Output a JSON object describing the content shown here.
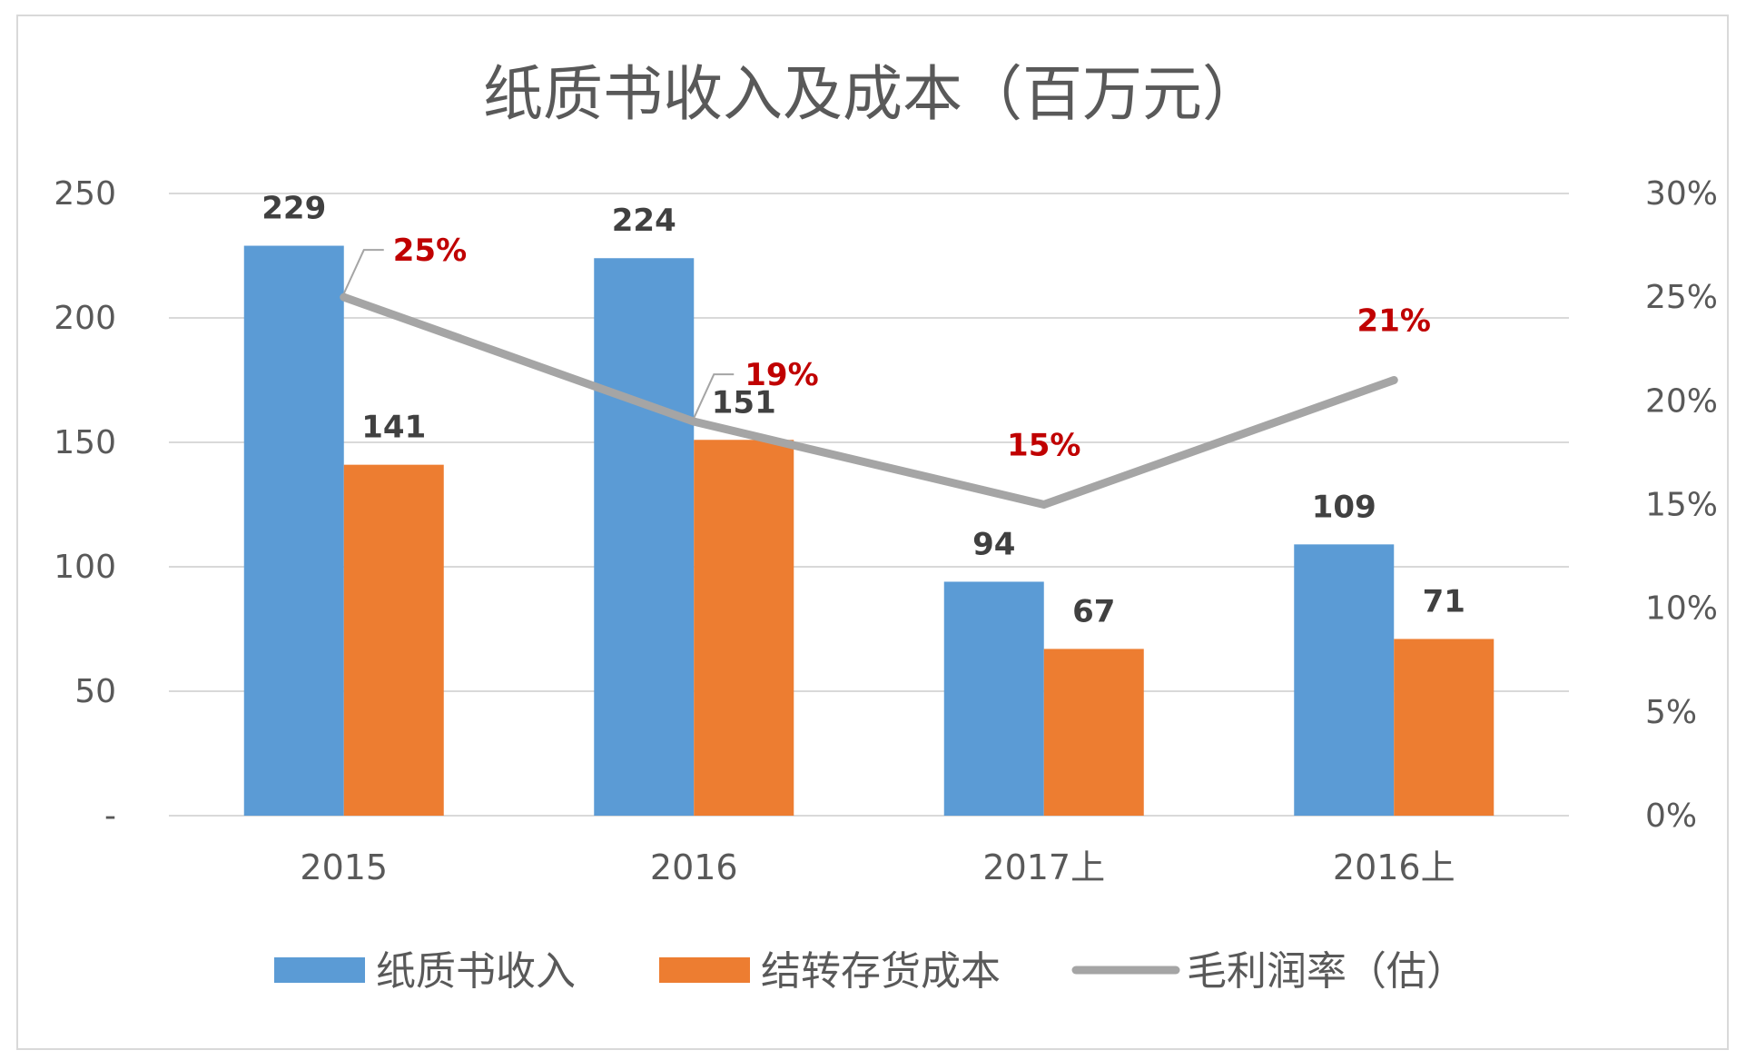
{
  "chart_data": {
    "type": "bar",
    "title": "纸质书收入及成本（百万元）",
    "categories": [
      "2015",
      "2016",
      "2017上",
      "2016上"
    ],
    "series": [
      {
        "name": "纸质书收入",
        "type": "bar",
        "axis": "left",
        "color": "#5b9bd5",
        "values": [
          229,
          224,
          94,
          109
        ],
        "labels": [
          "229",
          "224",
          "94",
          "109"
        ]
      },
      {
        "name": "结转存货成本",
        "type": "bar",
        "axis": "left",
        "color": "#ed7d31",
        "values": [
          141,
          151,
          67,
          71
        ],
        "labels": [
          "141",
          "151",
          "67",
          "71"
        ]
      },
      {
        "name": "毛利润率（估）",
        "type": "line",
        "axis": "right",
        "color": "#a5a5a5",
        "values": [
          0.25,
          0.19,
          0.15,
          0.21
        ],
        "labels": [
          "25%",
          "19%",
          "15%",
          "21%"
        ],
        "label_color": "#c00000"
      }
    ],
    "y_left": {
      "min": 0,
      "max": 250,
      "ticks": [
        "-",
        "50",
        "100",
        "150",
        "200",
        "250"
      ]
    },
    "y_right": {
      "min": 0,
      "max": 0.3,
      "ticks": [
        "0%",
        "5%",
        "10%",
        "15%",
        "20%",
        "25%",
        "30%"
      ]
    },
    "grid": true,
    "legend": "bottom"
  }
}
